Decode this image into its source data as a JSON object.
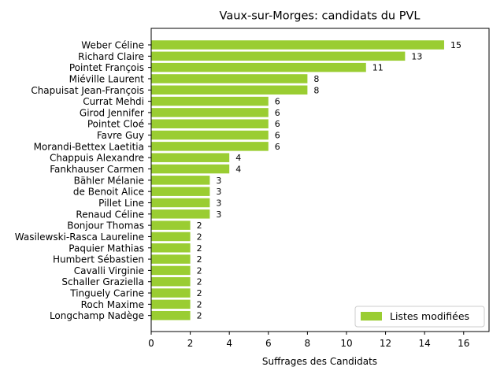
{
  "chart_data": {
    "type": "bar",
    "orientation": "horizontal",
    "title": "Vaux-sur-Morges: candidats du PVL",
    "xlabel": "Suffrages des Candidats",
    "ylabel": "",
    "xlim": [
      0,
      17.3
    ],
    "xticks": [
      "0",
      "2",
      "4",
      "6",
      "8",
      "10",
      "12",
      "14",
      "16"
    ],
    "grid": false,
    "legend_position": "bottom-right",
    "bar_color": "#9acd32",
    "series": [
      {
        "name": "Listes modifiées",
        "color": "#9acd32"
      }
    ],
    "categories": [
      "Weber Céline",
      "Richard Claire",
      "Pointet François",
      "Miéville Laurent",
      "Chapuisat Jean-François",
      "Currat Mehdi",
      "Girod Jennifer",
      "Pointet Cloé",
      "Favre Guy",
      "Morandi-Bettex Laetitia",
      "Chappuis Alexandre",
      "Fankhauser Carmen",
      "Bähler Mélanie",
      "de Benoit Alice",
      "Pillet Line",
      "Renaud Céline",
      "Bonjour Thomas",
      "Wasilewski-Rasca Laureline",
      "Paquier Mathias",
      "Humbert Sébastien",
      "Cavalli Virginie",
      "Schaller Graziella",
      "Tinguely Carine",
      "Roch Maxime",
      "Longchamp Nadège"
    ],
    "values": [
      15,
      13,
      11,
      8,
      8,
      6,
      6,
      6,
      6,
      6,
      4,
      4,
      3,
      3,
      3,
      3,
      2,
      2,
      2,
      2,
      2,
      2,
      2,
      2,
      2
    ]
  }
}
